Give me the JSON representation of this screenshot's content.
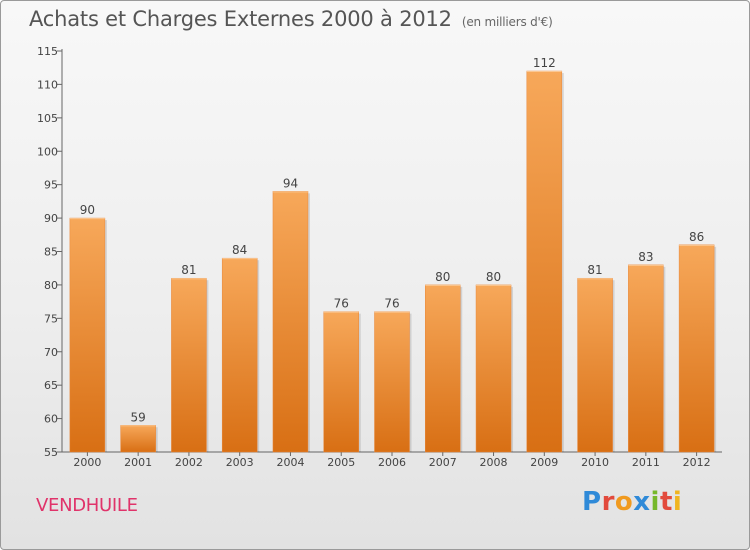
{
  "header": {
    "title": "Achats et Charges Externes 2000 à 2012",
    "subtitle": "(en milliers d'€)"
  },
  "commune": "VENDHUILE",
  "logo": {
    "letters": [
      "P",
      "r",
      "o",
      "x",
      "i",
      "t",
      "i"
    ]
  },
  "colors": {
    "bar_top": "#f7a85a",
    "bar_bottom": "#d86f14",
    "commune": "#e0336a"
  },
  "chart_data": {
    "type": "bar",
    "title": "Achats et Charges Externes 2000 à 2012",
    "subtitle": "(en milliers d'€)",
    "categories": [
      "2000",
      "2001",
      "2002",
      "2003",
      "2004",
      "2005",
      "2006",
      "2007",
      "2008",
      "2009",
      "2010",
      "2011",
      "2012"
    ],
    "values": [
      90,
      59,
      81,
      84,
      94,
      76,
      76,
      80,
      80,
      112,
      81,
      83,
      86
    ],
    "ylim": [
      55,
      115
    ],
    "yticks": [
      55,
      60,
      65,
      70,
      75,
      80,
      85,
      90,
      95,
      100,
      105,
      110,
      115
    ],
    "grid": false,
    "legend": "none"
  }
}
